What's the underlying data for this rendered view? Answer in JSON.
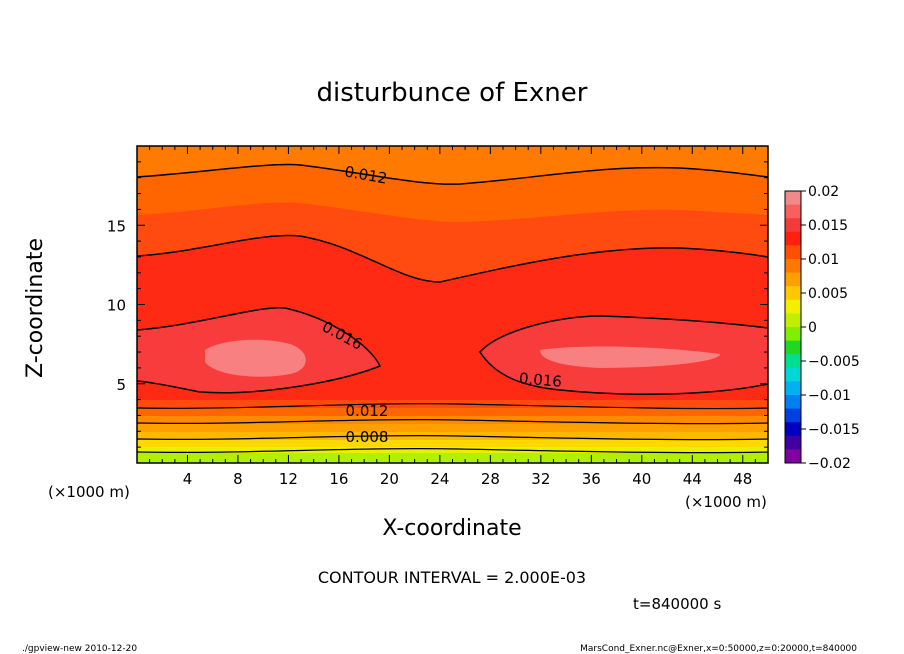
{
  "chart_data": {
    "type": "heatmap",
    "title": "disturbunce of Exner",
    "xlabel": "X-coordinate",
    "ylabel": "Z-coordinate",
    "x_unit": "(×1000 m)",
    "y_unit": "(×1000 m)",
    "xlim": [
      0,
      50
    ],
    "ylim": [
      0,
      20
    ],
    "x_ticks": [
      4,
      8,
      12,
      16,
      20,
      24,
      28,
      32,
      36,
      40,
      44,
      48
    ],
    "y_ticks": [
      5,
      10,
      15
    ],
    "contour_levels": [
      0.012,
      0.008,
      0.012,
      0.016,
      0.016
    ],
    "contour_labels": [
      "0.012",
      "0.008",
      "0.012",
      "0.016",
      "0.016"
    ],
    "contour_interval": "CONTOUR INTERVAL = 2.000E-03",
    "time_label": "t=840000 s",
    "colorbar": {
      "ticks": [
        "0.02",
        "0.015",
        "0.01",
        "0.005",
        "0",
        "−0.005",
        "−0.01",
        "−0.015",
        "−0.02"
      ],
      "range": [
        -0.02,
        0.02
      ],
      "colors": [
        "#f08a8a",
        "#f86060",
        "#f43a3a",
        "#ff2010",
        "#ff5000",
        "#ff7800",
        "#ffa000",
        "#ffc800",
        "#f0f000",
        "#c0f000",
        "#80f000",
        "#20d820",
        "#00e090",
        "#00d8d8",
        "#00b0f0",
        "#0080f0",
        "#0040e0",
        "#0000c0",
        "#4000a0",
        "#8000a0"
      ]
    },
    "footer_left": "./gpview-new  2010-12-20",
    "footer_right": "MarsCond_Exner.nc@Exner,x=0:50000,z=0:20000,t=840000"
  }
}
